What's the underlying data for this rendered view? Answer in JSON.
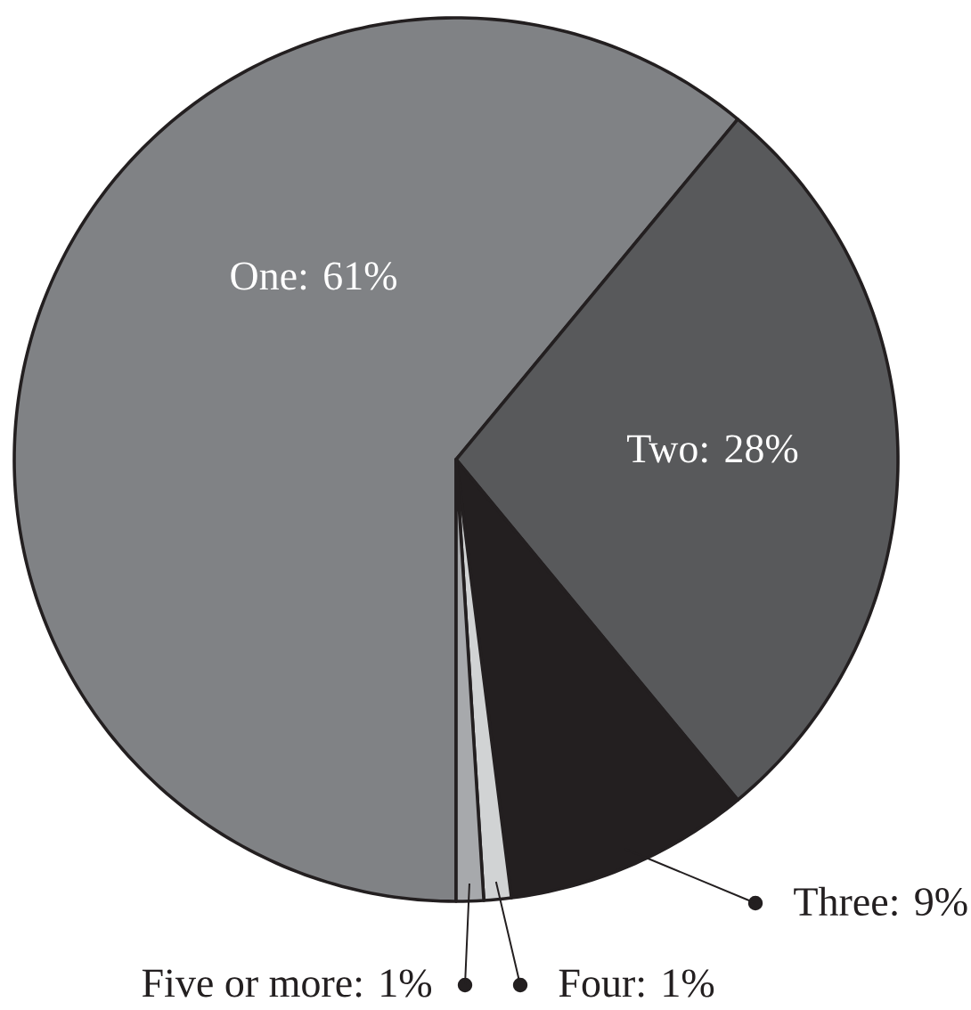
{
  "chart_data": {
    "type": "pie",
    "categories": [
      null,
      null,
      null,
      null,
      null
    ],
    "values": [
      61,
      28,
      9,
      1,
      1
    ],
    "colors": [
      "#808285",
      "#58595b",
      "#231f20",
      "#d1d3d4",
      "#a7a9ac"
    ],
    "value_labels": [
      "One: 61%",
      "Two: 28%",
      "Three: 9%",
      "Four: 1%",
      "Five or more: 1%"
    ]
  }
}
